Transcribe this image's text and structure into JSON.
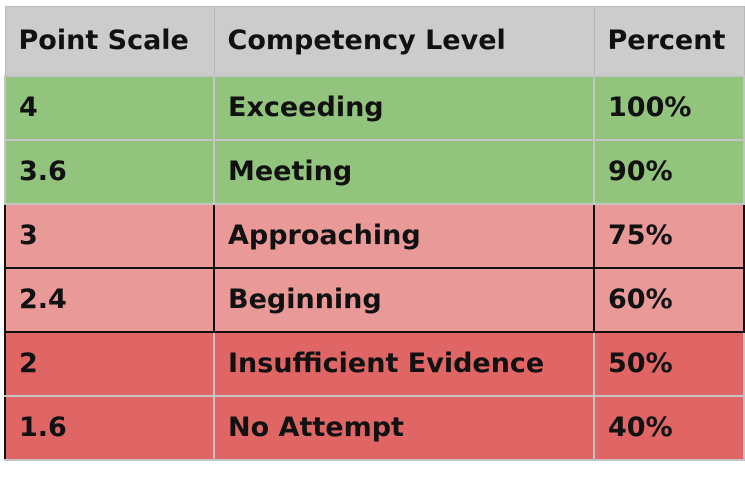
{
  "table": {
    "headers": [
      "Point Scale",
      "Competency Level",
      "Percent"
    ],
    "rows": [
      {
        "point": "4",
        "level": "Exceeding",
        "percent": "100%",
        "color": "#93c47d",
        "group": "meeting"
      },
      {
        "point": "3.6",
        "level": "Meeting",
        "percent": "90%",
        "color": "#93c47d",
        "group": "meeting"
      },
      {
        "point": "3",
        "level": "Approaching",
        "percent": "75%",
        "color": "#ea9999",
        "group": "approaching"
      },
      {
        "point": "2.4",
        "level": "Beginning",
        "percent": "60%",
        "color": "#ea9999",
        "group": "approaching"
      },
      {
        "point": "2",
        "level": "Insufficient Evidence",
        "percent": "50%",
        "color": "#e06666",
        "group": "insufficient"
      },
      {
        "point": "1.6",
        "level": "No Attempt",
        "percent": "40%",
        "color": "#e06666",
        "group": "insufficient"
      }
    ]
  }
}
